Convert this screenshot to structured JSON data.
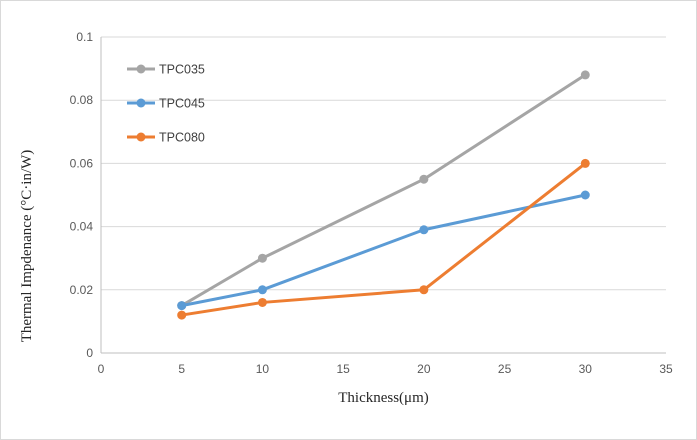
{
  "window": {
    "background": "#ffffff",
    "border_color": "#d9d9d9"
  },
  "chart_data": {
    "type": "line",
    "title": "",
    "xlabel": "Thickness(μm)",
    "ylabel": "Thermal Impdenance (°C·in/W)",
    "xlim": [
      0,
      35
    ],
    "ylim": [
      0,
      0.1
    ],
    "x": [
      5,
      10,
      20,
      30
    ],
    "series": [
      {
        "name": "TPC035",
        "color": "#a5a5a5",
        "values": [
          0.015,
          0.03,
          0.055,
          0.088
        ]
      },
      {
        "name": "TPC045",
        "color": "#5b9bd5",
        "values": [
          0.015,
          0.02,
          0.039,
          0.05
        ]
      },
      {
        "name": "TPC080",
        "color": "#ed7d31",
        "values": [
          0.012,
          0.016,
          0.02,
          0.06
        ]
      }
    ],
    "x_ticks": [
      0,
      5,
      10,
      15,
      20,
      25,
      30,
      35
    ],
    "x_tick_labels": [
      "0",
      "5",
      "10",
      "15",
      "20",
      "25",
      "30",
      "35"
    ],
    "y_ticks": [
      0,
      0.02,
      0.04,
      0.06,
      0.08,
      0.1
    ],
    "y_tick_labels": [
      "0",
      "0.02",
      "0.04",
      "0.06",
      "0.08",
      "0.1"
    ],
    "grid": "horizontal-only",
    "legend_position": "inside-top-left",
    "marker": "circle"
  },
  "colors": {
    "gridline": "#d9d9d9",
    "axis_line": "#bfbfbf",
    "tick_label": "#595959",
    "legend_text": "#404040",
    "axis_title": "#262626"
  }
}
